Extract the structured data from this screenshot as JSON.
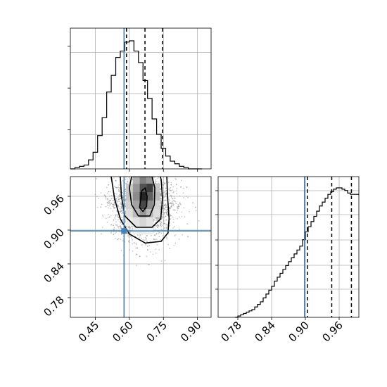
{
  "colors": {
    "truth": "#4682b4",
    "hist_line": "#000000",
    "grid": "#b0b0b0",
    "contour": "#000000",
    "points": "#9a9a9a"
  },
  "chart_data": [
    {
      "type": "histogram",
      "panel": "marginal-x",
      "xlim": [
        0.34,
        0.96
      ],
      "bin_edges": [
        0.34,
        0.36,
        0.38,
        0.4,
        0.42,
        0.44,
        0.46,
        0.48,
        0.5,
        0.52,
        0.54,
        0.56,
        0.58,
        0.6,
        0.62,
        0.64,
        0.66,
        0.68,
        0.7,
        0.72,
        0.74,
        0.76,
        0.78,
        0.8,
        0.82,
        0.84,
        0.86,
        0.88,
        0.9,
        0.92
      ],
      "relative_counts": [
        0.0,
        0.01,
        0.02,
        0.03,
        0.07,
        0.13,
        0.26,
        0.4,
        0.6,
        0.73,
        0.87,
        0.92,
        0.99,
        1.0,
        0.92,
        0.83,
        0.69,
        0.55,
        0.39,
        0.27,
        0.16,
        0.1,
        0.06,
        0.04,
        0.02,
        0.01,
        0.0,
        0.0,
        0.0
      ],
      "quantile_lines": [
        0.5873,
        0.6687,
        0.7458
      ],
      "truth": 0.5766,
      "grid": true
    },
    {
      "type": "histogram",
      "panel": "marginal-y",
      "xlim": [
        0.745,
        0.995
      ],
      "xticks": [
        "0.78",
        "0.84",
        "0.90",
        "0.96"
      ],
      "bin_edges": [
        0.775,
        0.78,
        0.785,
        0.79,
        0.795,
        0.8,
        0.805,
        0.81,
        0.815,
        0.82,
        0.825,
        0.83,
        0.835,
        0.84,
        0.845,
        0.85,
        0.855,
        0.86,
        0.865,
        0.87,
        0.875,
        0.88,
        0.885,
        0.89,
        0.895,
        0.9,
        0.905,
        0.91,
        0.915,
        0.92,
        0.925,
        0.93,
        0.935,
        0.94,
        0.945,
        0.95,
        0.955,
        0.96,
        0.965,
        0.97,
        0.975,
        0.98,
        0.985,
        0.99,
        0.995
      ],
      "relative_counts": [
        0.0,
        0.01,
        0.02,
        0.03,
        0.04,
        0.05,
        0.06,
        0.08,
        0.1,
        0.12,
        0.15,
        0.18,
        0.21,
        0.24,
        0.28,
        0.31,
        0.34,
        0.37,
        0.4,
        0.43,
        0.46,
        0.49,
        0.52,
        0.55,
        0.6,
        0.66,
        0.7,
        0.74,
        0.78,
        0.82,
        0.86,
        0.89,
        0.92,
        0.95,
        0.97,
        0.99,
        1.0,
        1.0,
        0.99,
        0.98,
        0.96,
        0.95,
        0.95,
        0.95
      ],
      "quantile_lines": [
        0.9035,
        0.9468,
        0.9818
      ],
      "truth": 0.8985,
      "grid": true
    },
    {
      "type": "scatter-density",
      "panel": "joint",
      "xlim": [
        0.34,
        0.96
      ],
      "ylim": [
        0.745,
        0.995
      ],
      "xticks": [
        "0.45",
        "0.60",
        "0.75",
        "0.90"
      ],
      "yticks": [
        "0.78",
        "0.84",
        "0.90",
        "0.96"
      ],
      "truth": {
        "x": 0.5766,
        "y": 0.8985
      },
      "density_peak": {
        "x": 0.66,
        "y": 0.965
      },
      "contours": [
        {
          "level": "0.5 sigma",
          "points": [
            [
              0.645,
              0.94
            ],
            [
              0.66,
              0.933
            ],
            [
              0.676,
              0.942
            ],
            [
              0.678,
              0.96
            ],
            [
              0.67,
              0.975
            ],
            [
              0.655,
              0.97
            ]
          ]
        },
        {
          "level": "1 sigma",
          "points": [
            [
              0.6,
              0.975
            ],
            [
              0.61,
              0.945
            ],
            [
              0.64,
              0.925
            ],
            [
              0.69,
              0.925
            ],
            [
              0.71,
              0.945
            ],
            [
              0.712,
              0.975
            ],
            [
              0.7,
              0.995
            ],
            [
              0.61,
              0.995
            ]
          ]
        },
        {
          "level": "1.5 sigma",
          "points": [
            [
              0.56,
              0.995
            ],
            [
              0.565,
              0.96
            ],
            [
              0.58,
              0.925
            ],
            [
              0.63,
              0.905
            ],
            [
              0.7,
              0.905
            ],
            [
              0.738,
              0.92
            ],
            [
              0.746,
              0.955
            ],
            [
              0.74,
              0.99
            ],
            [
              0.736,
              0.995
            ]
          ]
        },
        {
          "level": "2 sigma",
          "points": [
            [
              0.52,
              0.995
            ],
            [
              0.535,
              0.955
            ],
            [
              0.56,
              0.92
            ],
            [
              0.6,
              0.893
            ],
            [
              0.67,
              0.877
            ],
            [
              0.74,
              0.88
            ],
            [
              0.77,
              0.895
            ],
            [
              0.775,
              0.92
            ],
            [
              0.768,
              0.96
            ],
            [
              0.765,
              0.995
            ]
          ]
        }
      ],
      "grid": true
    }
  ]
}
